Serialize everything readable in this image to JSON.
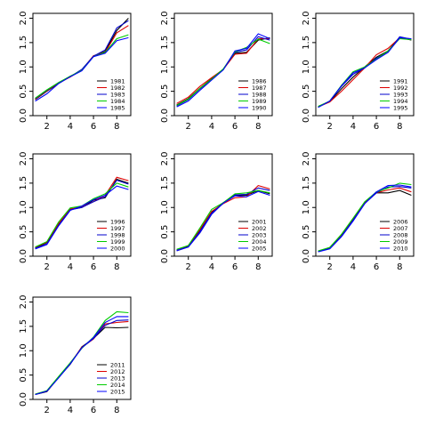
{
  "chart_data": [
    {
      "type": "line",
      "x": [
        1,
        2,
        3,
        4,
        5,
        6,
        7,
        8,
        9
      ],
      "xticks": [
        2,
        4,
        6,
        8
      ],
      "yticks": [
        "0.0",
        "0.5",
        "1.0",
        "1.5",
        "2.0"
      ],
      "ylim": [
        0,
        2.1
      ],
      "xlim": [
        0.8,
        9.2
      ],
      "grid": false,
      "legend_position": "bottom-right",
      "series": [
        {
          "name": "1981",
          "color": "#000000",
          "values": [
            0.33,
            0.5,
            0.66,
            0.8,
            0.93,
            1.22,
            1.32,
            1.75,
            2.0
          ]
        },
        {
          "name": "1982",
          "color": "#dd0000",
          "values": [
            0.34,
            0.51,
            0.67,
            0.79,
            0.94,
            1.23,
            1.3,
            1.7,
            1.85
          ]
        },
        {
          "name": "1983",
          "color": "#0000cc",
          "values": [
            0.35,
            0.52,
            0.68,
            0.8,
            0.95,
            1.22,
            1.35,
            1.8,
            1.95
          ]
        },
        {
          "name": "1984",
          "color": "#00cc00",
          "values": [
            0.36,
            0.53,
            0.68,
            0.81,
            0.93,
            1.21,
            1.3,
            1.58,
            1.66
          ]
        },
        {
          "name": "1985",
          "color": "#0000ff",
          "values": [
            0.3,
            0.45,
            0.66,
            0.8,
            0.92,
            1.21,
            1.28,
            1.54,
            1.6
          ]
        }
      ]
    },
    {
      "type": "line",
      "x": [
        1,
        2,
        3,
        4,
        5,
        6,
        7,
        8,
        9
      ],
      "xticks": [
        2,
        4,
        6,
        8
      ],
      "yticks": [
        "0.0",
        "0.5",
        "1.0",
        "1.5",
        "2.0"
      ],
      "ylim": [
        0,
        2.1
      ],
      "xlim": [
        0.8,
        9.2
      ],
      "grid": false,
      "legend_position": "bottom-right",
      "series": [
        {
          "name": "1986",
          "color": "#000000",
          "values": [
            0.22,
            0.35,
            0.56,
            0.76,
            0.95,
            1.28,
            1.3,
            1.55,
            1.6
          ]
        },
        {
          "name": "1987",
          "color": "#dd0000",
          "values": [
            0.25,
            0.38,
            0.6,
            0.78,
            0.95,
            1.26,
            1.28,
            1.58,
            1.58
          ]
        },
        {
          "name": "1988",
          "color": "#0000cc",
          "values": [
            0.2,
            0.33,
            0.55,
            0.74,
            0.95,
            1.3,
            1.35,
            1.62,
            1.55
          ]
        },
        {
          "name": "1989",
          "color": "#00cc00",
          "values": [
            0.21,
            0.34,
            0.56,
            0.75,
            0.96,
            1.31,
            1.4,
            1.57,
            1.48
          ]
        },
        {
          "name": "1990",
          "color": "#0000ff",
          "values": [
            0.18,
            0.3,
            0.52,
            0.73,
            0.94,
            1.33,
            1.38,
            1.68,
            1.58
          ]
        }
      ]
    },
    {
      "type": "line",
      "x": [
        1,
        2,
        3,
        4,
        5,
        6,
        7,
        8,
        9
      ],
      "xticks": [
        2,
        4,
        6,
        8
      ],
      "yticks": [
        "0.0",
        "0.5",
        "1.0",
        "1.5",
        "2.0"
      ],
      "ylim": [
        0,
        2.1
      ],
      "xlim": [
        0.8,
        9.2
      ],
      "grid": false,
      "legend_position": "bottom-right",
      "series": [
        {
          "name": "1991",
          "color": "#000000",
          "values": [
            0.19,
            0.29,
            0.55,
            0.79,
            1.0,
            1.2,
            1.33,
            1.61,
            1.55
          ]
        },
        {
          "name": "1992",
          "color": "#dd0000",
          "values": [
            0.18,
            0.28,
            0.5,
            0.74,
            0.98,
            1.25,
            1.38,
            1.6,
            1.56
          ]
        },
        {
          "name": "1993",
          "color": "#0000cc",
          "values": [
            0.17,
            0.3,
            0.6,
            0.85,
            0.98,
            1.18,
            1.3,
            1.62,
            1.57
          ]
        },
        {
          "name": "1994",
          "color": "#00cc00",
          "values": [
            0.19,
            0.3,
            0.62,
            0.9,
            1.0,
            1.16,
            1.33,
            1.58,
            1.56
          ]
        },
        {
          "name": "1995",
          "color": "#0000ff",
          "values": [
            0.17,
            0.3,
            0.61,
            0.88,
            0.98,
            1.15,
            1.3,
            1.6,
            1.58
          ]
        }
      ]
    },
    {
      "type": "line",
      "x": [
        1,
        2,
        3,
        4,
        5,
        6,
        7,
        8,
        9
      ],
      "xticks": [
        2,
        4,
        6,
        8
      ],
      "yticks": [
        "0.0",
        "0.5",
        "1.0",
        "1.5",
        "2.0"
      ],
      "ylim": [
        0,
        2.1
      ],
      "xlim": [
        0.8,
        9.2
      ],
      "grid": false,
      "legend_position": "bottom-right",
      "series": [
        {
          "name": "1996",
          "color": "#000000",
          "values": [
            0.17,
            0.28,
            0.66,
            0.96,
            1.0,
            1.15,
            1.2,
            1.58,
            1.5
          ]
        },
        {
          "name": "1997",
          "color": "#dd0000",
          "values": [
            0.18,
            0.29,
            0.67,
            0.97,
            1.01,
            1.12,
            1.25,
            1.62,
            1.55
          ]
        },
        {
          "name": "1998",
          "color": "#0000cc",
          "values": [
            0.16,
            0.25,
            0.63,
            0.95,
            1.0,
            1.12,
            1.22,
            1.56,
            1.48
          ]
        },
        {
          "name": "1999",
          "color": "#00cc00",
          "values": [
            0.19,
            0.3,
            0.7,
            0.99,
            1.03,
            1.18,
            1.28,
            1.5,
            1.42
          ]
        },
        {
          "name": "2000",
          "color": "#0000ff",
          "values": [
            0.15,
            0.24,
            0.62,
            0.94,
            1.03,
            1.16,
            1.25,
            1.44,
            1.37
          ]
        }
      ]
    },
    {
      "type": "line",
      "x": [
        1,
        2,
        3,
        4,
        5,
        6,
        7,
        8,
        9
      ],
      "xticks": [
        2,
        4,
        6,
        8
      ],
      "yticks": [
        "0.0",
        "0.5",
        "1.0",
        "1.5",
        "2.0"
      ],
      "ylim": [
        0,
        2.1
      ],
      "xlim": [
        0.8,
        9.2
      ],
      "grid": false,
      "legend_position": "bottom-right",
      "series": [
        {
          "name": "2001",
          "color": "#000000",
          "values": [
            0.12,
            0.2,
            0.52,
            0.9,
            1.1,
            1.25,
            1.25,
            1.35,
            1.28
          ]
        },
        {
          "name": "2002",
          "color": "#dd0000",
          "values": [
            0.13,
            0.22,
            0.55,
            0.92,
            1.08,
            1.2,
            1.22,
            1.45,
            1.38
          ]
        },
        {
          "name": "2003",
          "color": "#0000cc",
          "values": [
            0.11,
            0.19,
            0.48,
            0.86,
            1.09,
            1.26,
            1.27,
            1.4,
            1.35
          ]
        },
        {
          "name": "2004",
          "color": "#00cc00",
          "values": [
            0.14,
            0.22,
            0.58,
            0.96,
            1.1,
            1.28,
            1.3,
            1.35,
            1.3
          ]
        },
        {
          "name": "2005",
          "color": "#0000ff",
          "values": [
            0.12,
            0.19,
            0.5,
            0.88,
            1.09,
            1.24,
            1.22,
            1.33,
            1.25
          ]
        }
      ]
    },
    {
      "type": "line",
      "x": [
        1,
        2,
        3,
        4,
        5,
        6,
        7,
        8,
        9
      ],
      "xticks": [
        2,
        4,
        6,
        8
      ],
      "yticks": [
        "0.0",
        "0.5",
        "1.0",
        "1.5",
        "2.0"
      ],
      "ylim": [
        0,
        2.1
      ],
      "xlim": [
        0.8,
        9.2
      ],
      "grid": false,
      "legend_position": "bottom-right",
      "series": [
        {
          "name": "2006",
          "color": "#000000",
          "values": [
            0.1,
            0.17,
            0.42,
            0.75,
            1.1,
            1.3,
            1.3,
            1.35,
            1.25
          ]
        },
        {
          "name": "2007",
          "color": "#dd0000",
          "values": [
            0.1,
            0.18,
            0.43,
            0.76,
            1.1,
            1.3,
            1.36,
            1.4,
            1.32
          ]
        },
        {
          "name": "2008",
          "color": "#0000cc",
          "values": [
            0.1,
            0.16,
            0.41,
            0.74,
            1.08,
            1.3,
            1.42,
            1.43,
            1.4
          ]
        },
        {
          "name": "2009",
          "color": "#00cc00",
          "values": [
            0.11,
            0.18,
            0.45,
            0.78,
            1.12,
            1.32,
            1.4,
            1.5,
            1.47
          ]
        },
        {
          "name": "2010",
          "color": "#0000ff",
          "values": [
            0.09,
            0.15,
            0.4,
            0.72,
            1.08,
            1.32,
            1.45,
            1.46,
            1.42
          ]
        }
      ]
    },
    {
      "type": "line",
      "x": [
        1,
        2,
        3,
        4,
        5,
        6,
        7,
        8,
        9
      ],
      "xticks": [
        2,
        4,
        6,
        8
      ],
      "yticks": [
        "0.0",
        "0.5",
        "1.0",
        "1.5",
        "2.0"
      ],
      "ylim": [
        0,
        2.1
      ],
      "xlim": [
        0.8,
        9.2
      ],
      "grid": false,
      "legend_position": "bottom-right",
      "series": [
        {
          "name": "2011",
          "color": "#000000",
          "values": [
            0.1,
            0.16,
            0.45,
            0.72,
            1.08,
            1.25,
            1.48,
            1.47,
            1.48
          ]
        },
        {
          "name": "2012",
          "color": "#dd0000",
          "values": [
            0.11,
            0.17,
            0.46,
            0.74,
            1.07,
            1.24,
            1.55,
            1.58,
            1.6
          ]
        },
        {
          "name": "2013",
          "color": "#0000cc",
          "values": [
            0.1,
            0.17,
            0.45,
            0.73,
            1.06,
            1.25,
            1.52,
            1.62,
            1.63
          ]
        },
        {
          "name": "2014",
          "color": "#00cc00",
          "values": [
            0.11,
            0.18,
            0.47,
            0.75,
            1.05,
            1.28,
            1.62,
            1.8,
            1.78
          ]
        },
        {
          "name": "2015",
          "color": "#0000ff",
          "values": [
            0.1,
            0.17,
            0.44,
            0.73,
            1.06,
            1.27,
            1.58,
            1.7,
            1.7
          ]
        }
      ]
    }
  ]
}
